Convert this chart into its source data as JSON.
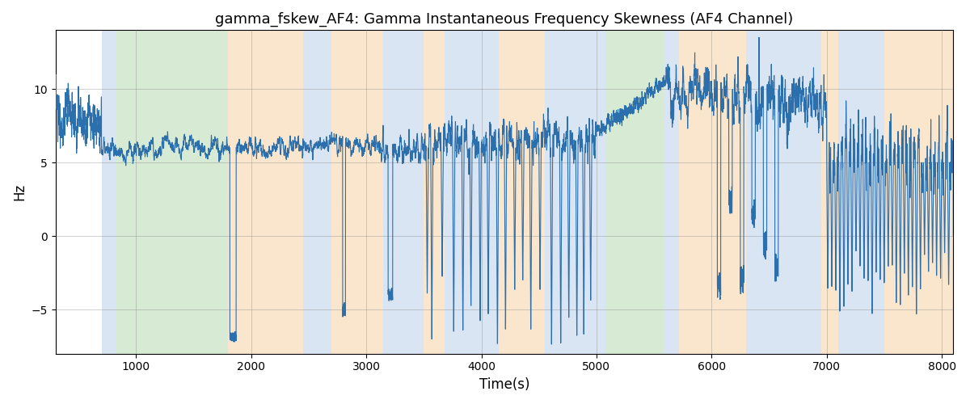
{
  "title": "gamma_fskew_AF4: Gamma Instantaneous Frequency Skewness (AF4 Channel)",
  "xlabel": "Time(s)",
  "ylabel": "Hz",
  "xlim": [
    300,
    8100
  ],
  "ylim": [
    -8,
    14
  ],
  "xticks": [
    1000,
    2000,
    3000,
    4000,
    5000,
    6000,
    7000,
    8000
  ],
  "yticks": [
    -5,
    0,
    5,
    10
  ],
  "background_color": "#ffffff",
  "line_color": "#2c6fad",
  "line_width": 0.8,
  "bands": [
    {
      "xmin": 700,
      "xmax": 830,
      "color": "#aec6e8",
      "alpha": 0.45
    },
    {
      "xmin": 830,
      "xmax": 1800,
      "color": "#a8d4a0",
      "alpha": 0.45
    },
    {
      "xmin": 1800,
      "xmax": 2450,
      "color": "#f5c992",
      "alpha": 0.45
    },
    {
      "xmin": 2450,
      "xmax": 2700,
      "color": "#aec6e8",
      "alpha": 0.45
    },
    {
      "xmin": 2700,
      "xmax": 3150,
      "color": "#f5c992",
      "alpha": 0.45
    },
    {
      "xmin": 3150,
      "xmax": 3500,
      "color": "#aec6e8",
      "alpha": 0.45
    },
    {
      "xmin": 3500,
      "xmax": 3680,
      "color": "#f5c992",
      "alpha": 0.45
    },
    {
      "xmin": 3680,
      "xmax": 4150,
      "color": "#aec6e8",
      "alpha": 0.45
    },
    {
      "xmin": 4150,
      "xmax": 4550,
      "color": "#f5c992",
      "alpha": 0.45
    },
    {
      "xmin": 4550,
      "xmax": 4980,
      "color": "#aec6e8",
      "alpha": 0.45
    },
    {
      "xmin": 4980,
      "xmax": 5080,
      "color": "#aec6e8",
      "alpha": 0.45
    },
    {
      "xmin": 5080,
      "xmax": 5580,
      "color": "#a8d4a0",
      "alpha": 0.45
    },
    {
      "xmin": 5580,
      "xmax": 5720,
      "color": "#aec6e8",
      "alpha": 0.45
    },
    {
      "xmin": 5720,
      "xmax": 6300,
      "color": "#f5c992",
      "alpha": 0.45
    },
    {
      "xmin": 6300,
      "xmax": 6950,
      "color": "#aec6e8",
      "alpha": 0.45
    },
    {
      "xmin": 6950,
      "xmax": 7100,
      "color": "#f5c992",
      "alpha": 0.45
    },
    {
      "xmin": 7100,
      "xmax": 7500,
      "color": "#aec6e8",
      "alpha": 0.45
    },
    {
      "xmin": 7500,
      "xmax": 8100,
      "color": "#f5c992",
      "alpha": 0.45
    }
  ]
}
